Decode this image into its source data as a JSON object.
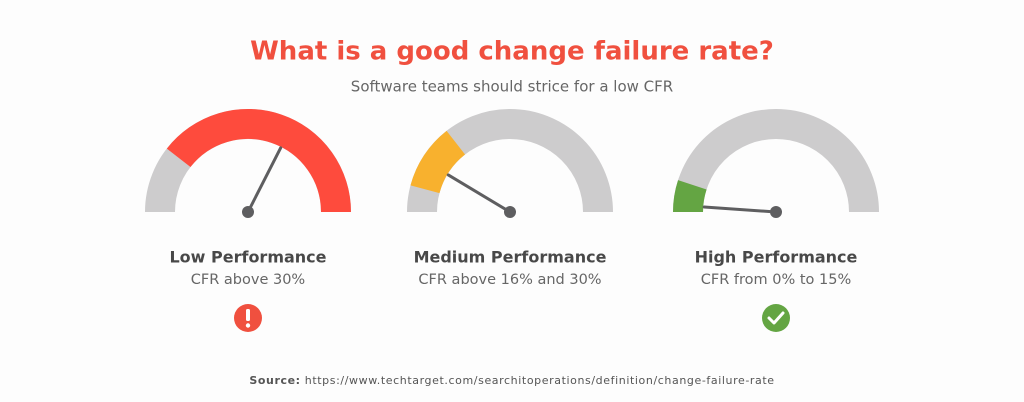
{
  "header": {
    "title": "What is a good change failure rate?",
    "subtitle": "Software teams should strice for a low CFR"
  },
  "gauges": [
    {
      "label": "Low Performance",
      "description": "CFR above 30%"
    },
    {
      "label": "Medium Performance",
      "description": "CFR above 16% and 30%"
    },
    {
      "label": "High Performance",
      "description": "CFR from 0% to 15%"
    }
  ],
  "source": {
    "label": "Source:",
    "url": "https://www.techtarget.com/searchitoperations/definition/change-failure-rate"
  }
}
